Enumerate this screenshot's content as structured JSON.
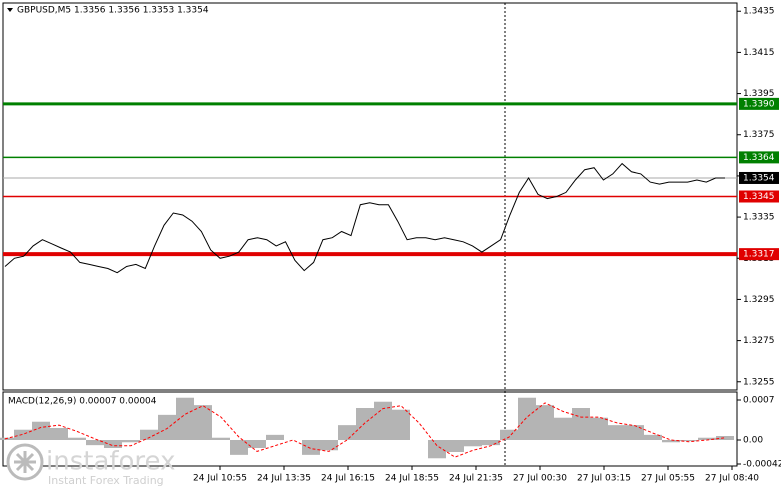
{
  "chart_data": [
    {
      "type": "line",
      "title": "GBPUSD,M5  1.3356 1.3356 1.3353 1.3354",
      "color": "#000000",
      "values": [
        1.3311,
        1.3315,
        1.3316,
        1.3321,
        1.3324,
        1.3322,
        1.332,
        1.3318,
        1.3313,
        1.3312,
        1.3311,
        1.331,
        1.3308,
        1.3311,
        1.3312,
        1.331,
        1.3321,
        1.3331,
        1.3337,
        1.3336,
        1.3333,
        1.3328,
        1.3319,
        1.3315,
        1.3316,
        1.3318,
        1.3324,
        1.3325,
        1.3324,
        1.3321,
        1.3323,
        1.3314,
        1.3309,
        1.3313,
        1.3324,
        1.3325,
        1.3328,
        1.3326,
        1.3341,
        1.3342,
        1.3341,
        1.3341,
        1.3333,
        1.3324,
        1.3325,
        1.3325,
        1.3324,
        1.3325,
        1.3324,
        1.3323,
        1.3321,
        1.3318,
        1.3321,
        1.3324,
        1.3336,
        1.3347,
        1.3354,
        1.3346,
        1.3344,
        1.3345,
        1.3347,
        1.3353,
        1.3358,
        1.3359,
        1.3353,
        1.3356,
        1.3361,
        1.3357,
        1.3356,
        1.3352,
        1.3351,
        1.3352,
        1.3352,
        1.3352,
        1.3353,
        1.3352,
        1.3354,
        1.3354
      ],
      "ylim": [
        1.3251,
        1.3439
      ],
      "yticks": [
        1.3435,
        1.3415,
        1.3395,
        1.3375,
        1.3355,
        1.3335,
        1.3315,
        1.3295,
        1.3275,
        1.3255
      ],
      "levels": [
        {
          "value": 1.339,
          "label": "1.3390",
          "color": "#008000"
        },
        {
          "value": 1.3364,
          "color": "#008000"
        },
        {
          "value": 1.3345,
          "color": "#e00000"
        },
        {
          "value": 1.3317,
          "color": "#e00000"
        }
      ],
      "current": {
        "value": 1.3354,
        "color": "#000000"
      }
    },
    {
      "type": "macd",
      "title": "MACD(12,26,9) 0.00007 0.00004",
      "histogram": [
        4e-05,
        0.00018,
        0.00032,
        0.00021,
        4e-05,
        -9e-05,
        -0.00014,
        -4e-05,
        0.00018,
        0.00044,
        0.00074,
        0.00061,
        4e-05,
        -0.00026,
        -0.00014,
        9e-05,
        0,
        -0.00026,
        -0.00018,
        0.00026,
        0.00056,
        0.00067,
        0.00053,
        0,
        -0.00032,
        -0.00021,
        -0.00011,
        -9e-05,
        0.00018,
        0.00074,
        0.00061,
        0.00039,
        0.00056,
        0.00039,
        0.00026,
        0.00026,
        9e-05,
        -4e-05,
        -2e-05,
        4e-05,
        7e-05
      ],
      "signal": [
        2e-05,
        0.0001,
        0.00022,
        0.00026,
        0.00015,
        2e-05,
        -0.0001,
        -0.0001,
        4e-05,
        0.0002,
        0.00045,
        0.0006,
        0.0004,
        5e-05,
        -0.0002,
        -0.0001,
        0,
        -0.00015,
        -0.0002,
        0,
        0.0003,
        0.00055,
        0.0006,
        0.0003,
        -0.0001,
        -0.0003,
        -0.00018,
        -0.0001,
        5e-05,
        0.0004,
        0.00065,
        0.0005,
        0.0004,
        0.0004,
        0.0003,
        0.00025,
        0.00012,
        0,
        -3e-05,
        0,
        4e-05
      ],
      "histogram_color": "#b4b4b4",
      "signal_color": "#ff0000",
      "ylim": [
        -0.000455,
        0.00084
      ],
      "yticks": [
        0.0007,
        {
          "value": 0,
          "label": "0.00"
        },
        -0.00042
      ],
      "x_labels": [
        "24 Jul 10:55",
        "24 Jul 13:35",
        "24 Jul 16:15",
        "24 Jul 18:55",
        "24 Jul 21:35",
        "27 Jul 00:30",
        "27 Jul 03:15",
        "27 Jul 05:55",
        "27 Jul 08:40"
      ]
    }
  ],
  "logo": {
    "name": "instaforex",
    "tagline": "Instant Forex Trading"
  }
}
